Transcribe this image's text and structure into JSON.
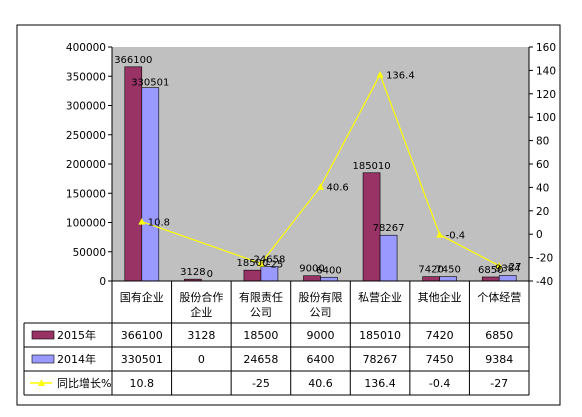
{
  "chart_data": {
    "type": "bar",
    "categories": [
      "国有企业",
      "股份合作企业",
      "有限责任公司",
      "股份有限公司",
      "私营企业",
      "其他企业",
      "个体经营"
    ],
    "series": [
      {
        "name": "2015年",
        "type": "bar",
        "axis": "left",
        "color": "#993366",
        "values": [
          366100,
          3128,
          18500,
          9000,
          185010,
          7420,
          6850
        ],
        "table_values": [
          "366100",
          "3128",
          "18500",
          "9000",
          "185010",
          "7420",
          "6850"
        ]
      },
      {
        "name": "2014年",
        "type": "bar",
        "axis": "left",
        "color": "#9999ff",
        "values": [
          330501,
          0,
          24658,
          6400,
          78267,
          7450,
          9384
        ],
        "table_values": [
          "330501",
          "0",
          "24658",
          "6400",
          "78267",
          "7450",
          "9384"
        ]
      },
      {
        "name": "同比增长%",
        "type": "line",
        "axis": "right",
        "color": "#ffff00",
        "values": [
          10.8,
          null,
          -25,
          40.6,
          136.4,
          -0.4,
          -27
        ],
        "table_values": [
          "10.8",
          "",
          "-25",
          "40.6",
          "136.4",
          "-0.4",
          "-27"
        ]
      }
    ],
    "y_left": {
      "min": 0,
      "max": 400000,
      "step": 50000,
      "ticks": [
        "0",
        "50000",
        "100000",
        "150000",
        "200000",
        "250000",
        "300000",
        "350000",
        "400000"
      ]
    },
    "y_right": {
      "min": -40,
      "max": 160,
      "step": 20,
      "ticks": [
        "-40",
        "-20",
        "0",
        "20",
        "40",
        "60",
        "80",
        "100",
        "120",
        "140",
        "160"
      ]
    },
    "grid": false,
    "legend": "data-table-below"
  }
}
